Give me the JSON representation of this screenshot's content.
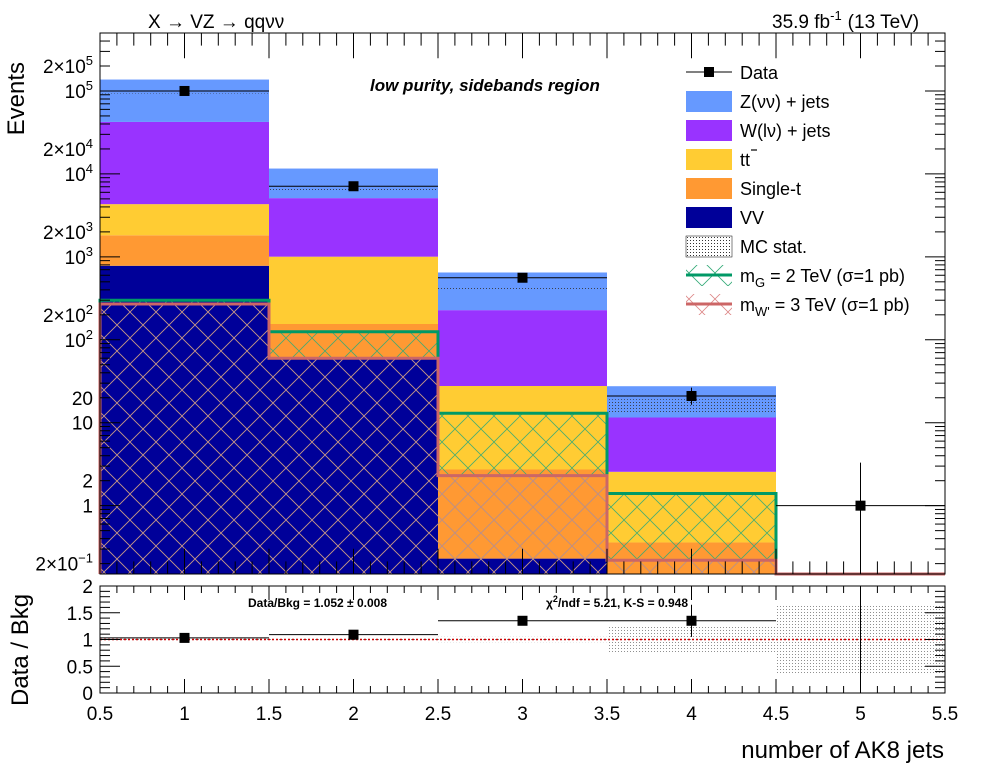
{
  "chart_data": {
    "type": "bar",
    "header": {
      "process_label": "X → VZ → qqνν",
      "lumi_label": "35.9 fb",
      "lumi_exp": "-1",
      "energy_label": "(13 TeV)",
      "region_label": "low purity, sidebands region"
    },
    "main": {
      "ylabel": "Events",
      "ylim_log": [
        0.15,
        500000
      ],
      "y_ticks": [
        {
          "v": 200000,
          "t": "2×10",
          "e": "5"
        },
        {
          "v": 100000,
          "t": "10",
          "e": "5"
        },
        {
          "v": 20000,
          "t": "2×10",
          "e": "4"
        },
        {
          "v": 10000,
          "t": "10",
          "e": "4"
        },
        {
          "v": 2000,
          "t": "2×10",
          "e": "3"
        },
        {
          "v": 1000,
          "t": "10",
          "e": "3"
        },
        {
          "v": 200,
          "t": "2×10",
          "e": "2"
        },
        {
          "v": 100,
          "t": "10",
          "e": "2"
        },
        {
          "v": 20,
          "t": "20",
          "e": ""
        },
        {
          "v": 10,
          "t": "10",
          "e": ""
        },
        {
          "v": 2,
          "t": "2",
          "e": ""
        },
        {
          "v": 1,
          "t": "1",
          "e": ""
        },
        {
          "v": 0.2,
          "t": "2×10",
          "e": "−1"
        }
      ]
    },
    "bins": [
      {
        "lo": 0.5,
        "hi": 1.5
      },
      {
        "lo": 1.5,
        "hi": 2.5
      },
      {
        "lo": 2.5,
        "hi": 3.5
      },
      {
        "lo": 3.5,
        "hi": 4.5
      },
      {
        "lo": 4.5,
        "hi": 5.5
      }
    ],
    "stack_series": [
      {
        "name": "VV",
        "color": "#000099",
        "values": [
          780,
          60,
          0.23,
          0.15,
          0
        ]
      },
      {
        "name": "Single-t",
        "color": "#ff9933",
        "values": [
          1040,
          95,
          2.5,
          0.21,
          0
        ]
      },
      {
        "name": "tt̄",
        "color": "#ffcc33",
        "values": [
          2500,
          850,
          25,
          2.2,
          0
        ]
      },
      {
        "name": "W(lν) + jets",
        "color": "#9933ff",
        "values": [
          38000,
          4100,
          200,
          9,
          0
        ]
      },
      {
        "name": "Z(νν) + jets",
        "color": "#6699ff",
        "values": [
          95000,
          6500,
          420,
          16,
          0
        ]
      }
    ],
    "data": {
      "name": "Data",
      "x": [
        1,
        2,
        3,
        4,
        5
      ],
      "y": [
        100000,
        7100,
        560,
        21,
        1
      ],
      "yerr_lo": [
        300,
        80,
        24,
        4.5,
        0.8
      ],
      "yerr_hi": [
        300,
        80,
        24,
        5.5,
        2.3
      ]
    },
    "signals": [
      {
        "name": "m_G = 2 TeV (σ=1 pb)",
        "color": "#009966",
        "values": [
          300,
          125,
          13,
          1.4,
          0
        ]
      },
      {
        "name": "m_W' = 3 TeV (σ=1 pb)",
        "color": "#cc6666",
        "values": [
          270,
          60,
          2.3,
          0.22,
          0.15
        ]
      }
    ],
    "mc_stat": {
      "name": "MC stat.",
      "values": [
        95000,
        6500,
        420,
        16,
        0
      ],
      "frac": [
        0.01,
        0.015,
        0.05,
        0.2,
        0
      ]
    },
    "legend": [
      {
        "label": "Data",
        "kind": "data"
      },
      {
        "label": "Z(νν) + jets",
        "kind": "fill",
        "color": "#6699ff"
      },
      {
        "label": "W(lν) + jets",
        "kind": "fill",
        "color": "#9933ff"
      },
      {
        "label": "tt",
        "kind": "fill",
        "color": "#ffcc33",
        "bar": true
      },
      {
        "label": "Single-t",
        "kind": "fill",
        "color": "#ff9933"
      },
      {
        "label": "VV",
        "kind": "fill",
        "color": "#000099"
      },
      {
        "label": "MC stat.",
        "kind": "stat"
      },
      {
        "label": "m",
        "sub": "G",
        "rest": " = 2 TeV (σ=1 pb)",
        "kind": "sig",
        "color": "#009966"
      },
      {
        "label": "m",
        "sub": "W'",
        "rest": " = 3 TeV (σ=1 pb)",
        "kind": "sig",
        "color": "#cc6666"
      }
    ],
    "ratio": {
      "ylabel": "Data / Bkg",
      "ylim": [
        0,
        2
      ],
      "y_ticks": [
        "0",
        "0.5",
        "1",
        "1.5",
        "2"
      ],
      "values": [
        1.03,
        1.09,
        1.35,
        1.35,
        0
      ],
      "err": [
        0.01,
        0.02,
        0.06,
        0.3,
        0
      ],
      "band_frac": [
        0.01,
        0.015,
        0.05,
        0.25,
        0.65
      ],
      "summary": "Data/Bkg = 1.052 ± 0.008",
      "chi2_label": "/ndf = 5.21,   K-S = 0.948",
      "chi2_prefix": "χ"
    },
    "xaxis": {
      "xlabel": "number of AK8 jets",
      "xlim": [
        0.5,
        5.5
      ],
      "ticks": [
        "0.5",
        "1",
        "1.5",
        "2",
        "2.5",
        "3",
        "3.5",
        "4",
        "4.5",
        "5",
        "5.5"
      ]
    }
  }
}
